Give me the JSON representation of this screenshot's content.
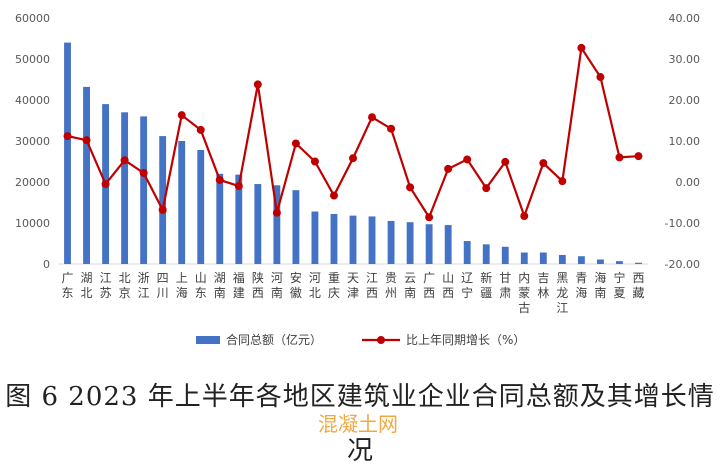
{
  "chart_data": {
    "type": "bar+line",
    "categories": [
      "广东",
      "湖北",
      "江苏",
      "北京",
      "浙江",
      "四川",
      "上海",
      "山东",
      "湖南",
      "福建",
      "陕西",
      "河南",
      "安徽",
      "河北",
      "重庆",
      "天津",
      "江西",
      "贵州",
      "云南",
      "广西",
      "山西",
      "辽宁",
      "新疆",
      "甘肃",
      "内蒙古",
      "吉林",
      "黑龙江",
      "青海",
      "海南",
      "宁夏",
      "西藏"
    ],
    "series": [
      {
        "name": "合同总额（亿元）",
        "type": "bar",
        "axis": "left",
        "color": "#4472c4",
        "values": [
          54000,
          43200,
          39000,
          37000,
          36000,
          31200,
          30000,
          27800,
          22000,
          21800,
          19500,
          19200,
          18000,
          12800,
          12200,
          11800,
          11600,
          10500,
          10200,
          9700,
          9500,
          5600,
          4800,
          4200,
          2800,
          2800,
          2200,
          1900,
          1100,
          700,
          300
        ]
      },
      {
        "name": "比上年同期增长（%）",
        "type": "line",
        "axis": "right",
        "color": "#c00000",
        "values": [
          11.2,
          10.2,
          -0.5,
          5.3,
          2.2,
          -6.8,
          16.3,
          12.7,
          0.5,
          -1.0,
          23.8,
          -7.5,
          9.4,
          5.0,
          -3.3,
          5.8,
          15.8,
          13.0,
          -1.3,
          -8.6,
          3.2,
          5.5,
          -1.5,
          4.9,
          -8.3,
          4.6,
          0.2,
          32.7,
          25.6,
          6.0,
          6.3
        ]
      }
    ],
    "y_left": {
      "min": 0,
      "max": 60000,
      "ticks": [
        "0",
        "10000",
        "20000",
        "30000",
        "40000",
        "50000",
        "60000"
      ]
    },
    "y_right": {
      "min": -20,
      "max": 40,
      "ticks": [
        "-20.00",
        "-10.00",
        "0.00",
        "10.00",
        "20.00",
        "30.00",
        "40.00"
      ]
    },
    "grid": false,
    "legend": "bottom"
  },
  "caption": {
    "line1": "图 6 2023 年上半年各地区建筑业企业合同总额及其增长情",
    "line2": "况"
  },
  "watermark": "混凝土网"
}
